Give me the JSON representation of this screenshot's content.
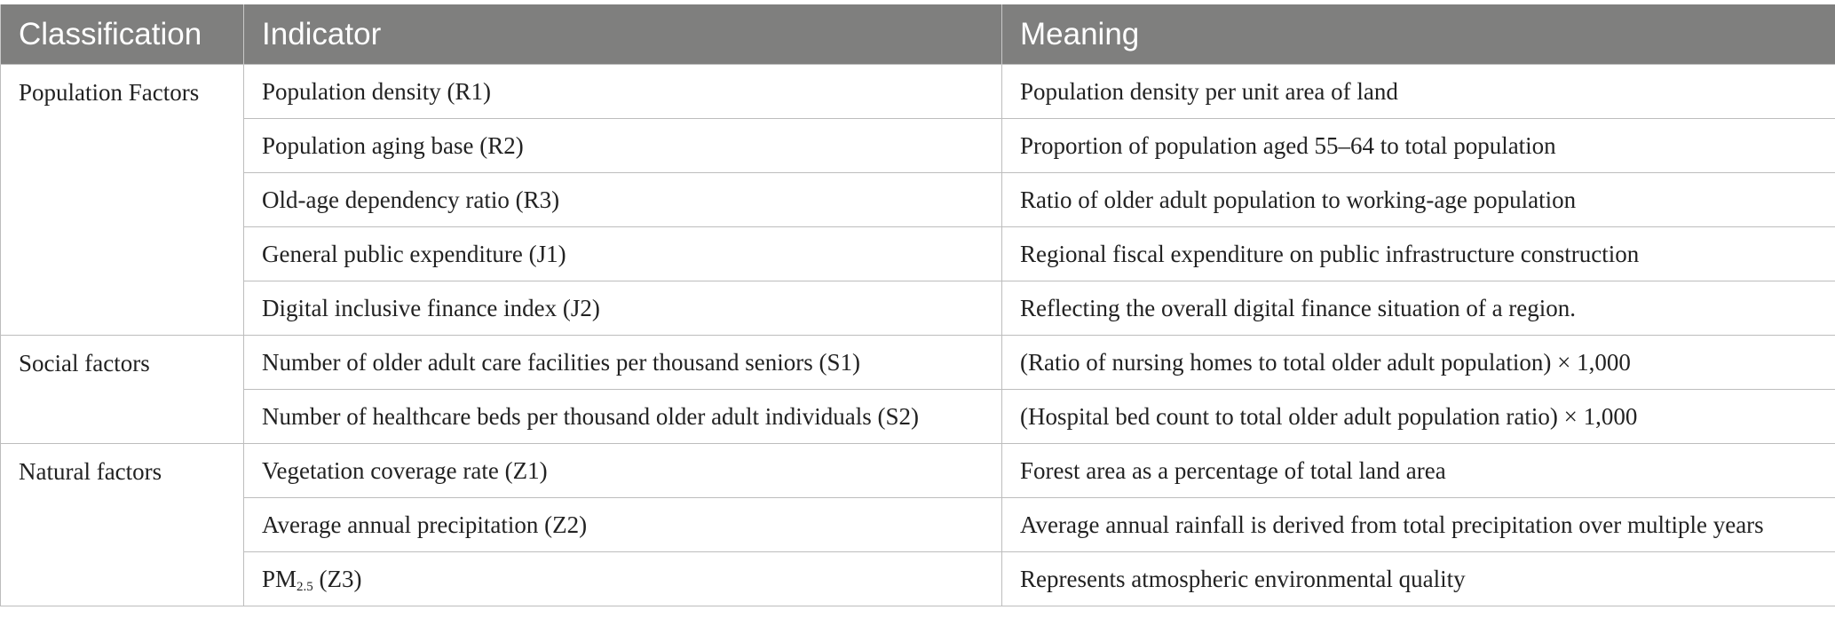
{
  "header": {
    "classification": "Classification",
    "indicator": "Indicator",
    "meaning": "Meaning"
  },
  "groups": [
    {
      "classification": "Population Factors",
      "rows": [
        {
          "indicator": "Population density (R1)",
          "meaning": "Population density per unit area of land"
        },
        {
          "indicator": "Population aging base (R2)",
          "meaning": "Proportion of population aged 55–64 to total population"
        },
        {
          "indicator": "Old-age dependency ratio (R3)",
          "meaning": "Ratio of older adult population to working-age population"
        },
        {
          "indicator": "General public expenditure (J1)",
          "meaning": "Regional fiscal expenditure on public infrastructure construction"
        },
        {
          "indicator": "Digital inclusive finance index (J2)",
          "meaning": "Reflecting the overall digital finance situation of a region."
        }
      ]
    },
    {
      "classification": "Social factors",
      "rows": [
        {
          "indicator": "Number of older adult care facilities per thousand seniors (S1)",
          "meaning": "(Ratio of nursing homes to total older adult population) × 1,000"
        },
        {
          "indicator": "Number of healthcare beds per thousand older adult individuals (S2)",
          "meaning": "(Hospital bed count to total older adult population ratio) × 1,000"
        }
      ]
    },
    {
      "classification": "Natural factors",
      "rows": [
        {
          "indicator": "Vegetation coverage rate (Z1)",
          "meaning": "Forest area as a percentage of total land area"
        },
        {
          "indicator": "Average annual precipitation (Z2)",
          "meaning": "Average annual rainfall is derived from total precipitation over multiple years"
        },
        {
          "indicator_main": "PM",
          "indicator_sub": "2.5",
          "indicator_suffix": " (Z3)",
          "meaning": "Represents atmospheric environmental quality"
        }
      ]
    }
  ]
}
